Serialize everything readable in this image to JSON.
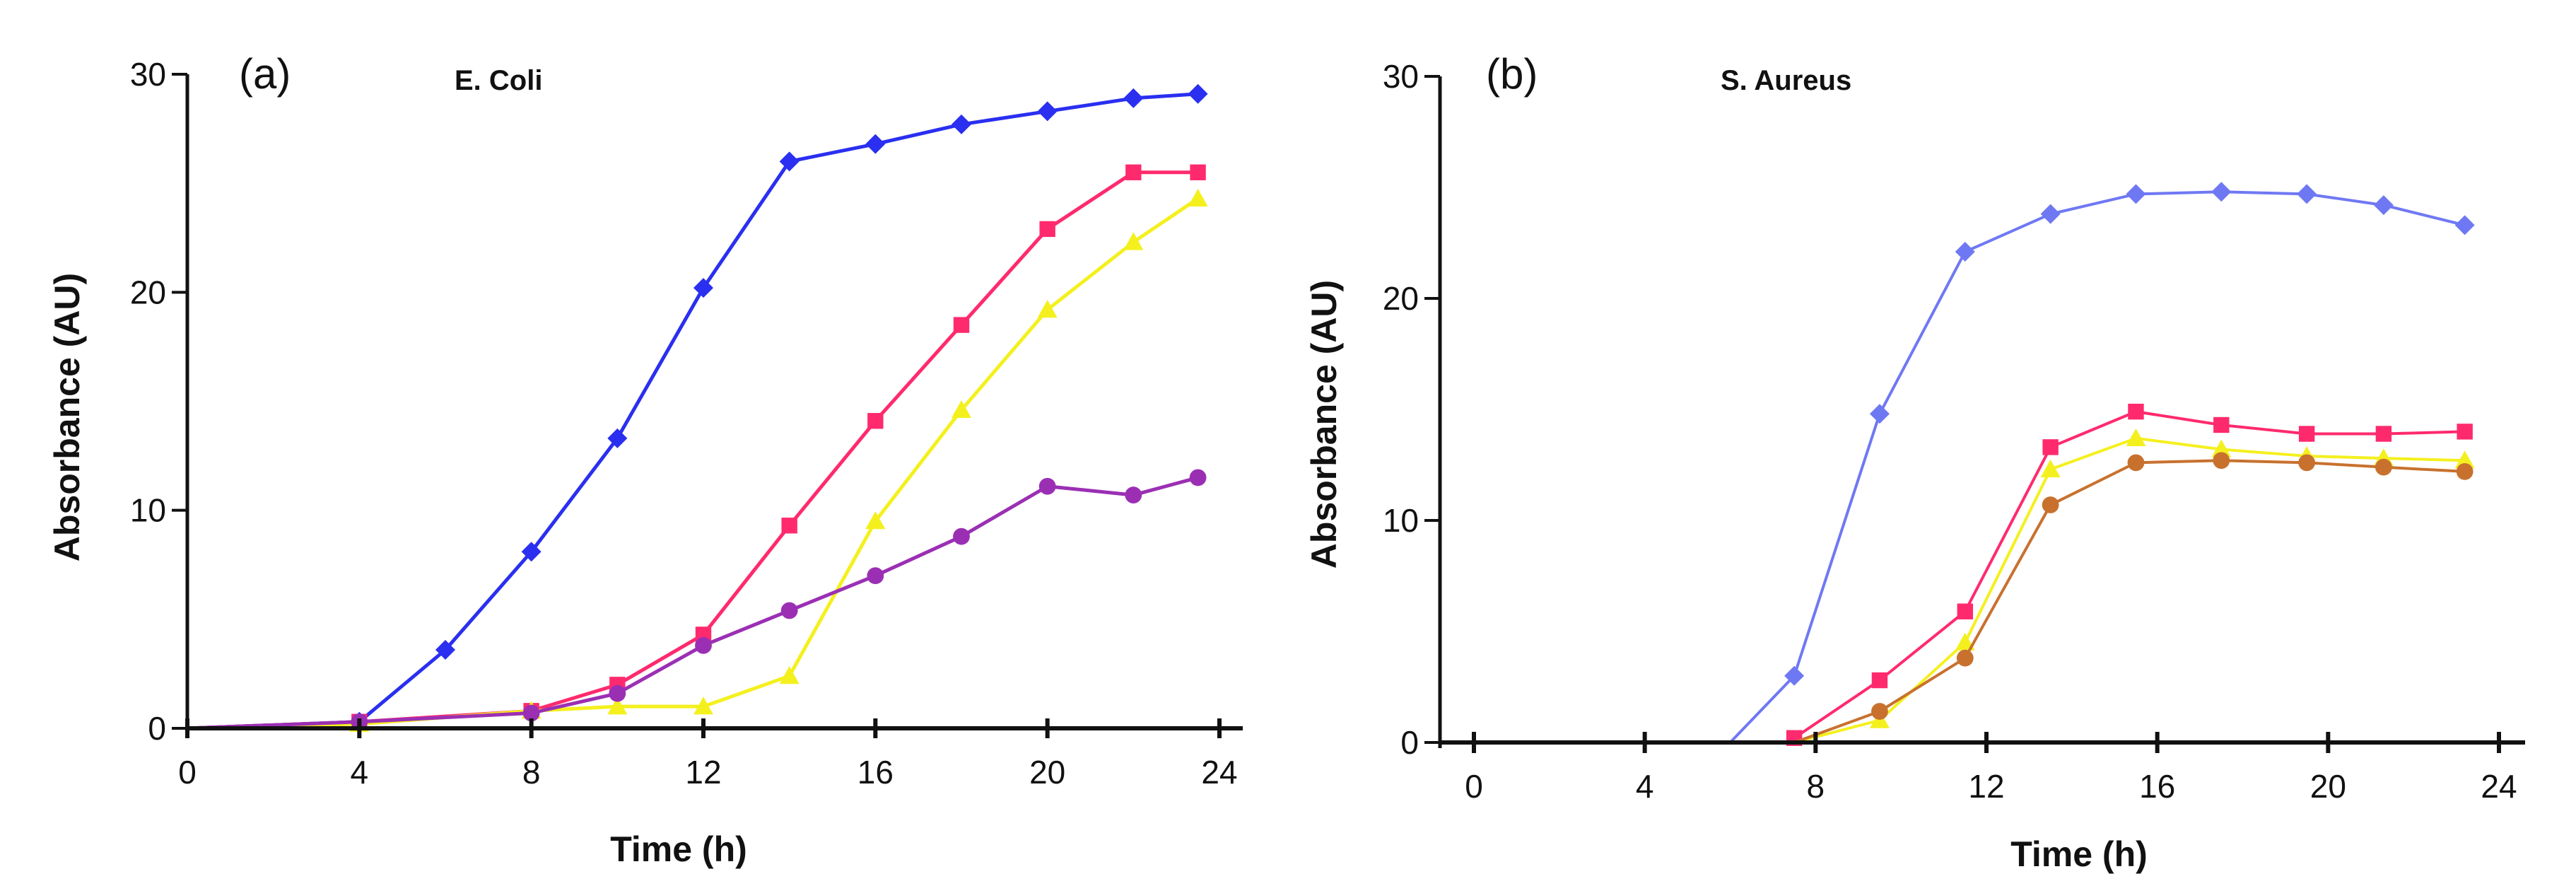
{
  "chart_data": [
    {
      "type": "line",
      "panel_label": "(a)",
      "title": "E. Coli",
      "xlabel": "Time (h)",
      "ylabel": "Absorbance (AU)",
      "xlim": [
        0,
        24
      ],
      "ylim": [
        0,
        30
      ],
      "x_ticks": [
        0,
        4,
        8,
        12,
        16,
        20,
        24
      ],
      "y_ticks": [
        0,
        10,
        20,
        30
      ],
      "series": [
        {
          "name": "blue",
          "color": "#2a2ff0",
          "marker": "diamond",
          "x": [
            0,
            4,
            6,
            8,
            10,
            12,
            14,
            16,
            18,
            20,
            22,
            23.5
          ],
          "y": [
            0,
            0.3,
            3.6,
            8.1,
            13.3,
            20.2,
            26,
            26.8,
            27.7,
            28.3,
            28.9,
            29.1
          ]
        },
        {
          "name": "pink",
          "color": "#ff2a6e",
          "marker": "square",
          "x": [
            0,
            4,
            8,
            10,
            12,
            14,
            16,
            18,
            20,
            22,
            23.5
          ],
          "y": [
            0,
            0.3,
            0.8,
            2,
            4.3,
            9.3,
            14.1,
            18.5,
            22.9,
            25.5,
            25.5
          ]
        },
        {
          "name": "yellow",
          "color": "#f4f01e",
          "marker": "triangle",
          "x": [
            0,
            4,
            8,
            10,
            12,
            14,
            16,
            18,
            20,
            22,
            23.5
          ],
          "y": [
            0,
            0.2,
            0.8,
            1,
            1,
            2.4,
            9.5,
            14.6,
            19.2,
            22.3,
            24.3
          ]
        },
        {
          "name": "purple",
          "color": "#9b2fb4",
          "marker": "circle",
          "x": [
            0,
            4,
            8,
            10,
            12,
            14,
            16,
            18,
            20,
            22,
            23.5
          ],
          "y": [
            0,
            0.3,
            0.7,
            1.6,
            3.8,
            5.4,
            7,
            8.8,
            11.1,
            10.7,
            11.5
          ]
        }
      ]
    },
    {
      "type": "line",
      "panel_label": "(b)",
      "title": "S. Aureus",
      "xlabel": "Time (h)",
      "ylabel": "Absorbance (AU)",
      "xlim": [
        0,
        24
      ],
      "ylim": [
        0,
        30
      ],
      "x_ticks": [
        0,
        4,
        8,
        12,
        16,
        20,
        24
      ],
      "y_ticks": [
        0,
        10,
        20,
        30
      ],
      "series": [
        {
          "name": "blue",
          "color": "#6f78f3",
          "marker": "diamond",
          "x": [
            6,
            7.5,
            9.5,
            11.5,
            13.5,
            15.5,
            17.5,
            19.5,
            21.3,
            23.2
          ],
          "y": [
            0,
            3,
            14.8,
            22.1,
            23.8,
            24.7,
            24.8,
            24.7,
            24.2,
            23.3
          ]
        },
        {
          "name": "pink",
          "color": "#ff2a6e",
          "marker": "square",
          "x": [
            7.5,
            9.5,
            11.5,
            13.5,
            15.5,
            17.5,
            19.5,
            21.3,
            23.2
          ],
          "y": [
            0.2,
            2.8,
            5.9,
            13.3,
            14.9,
            14.3,
            13.9,
            13.9,
            14
          ]
        },
        {
          "name": "yellow",
          "color": "#f4f01e",
          "marker": "triangle",
          "x": [
            7.5,
            9.5,
            11.5,
            13.5,
            15.5,
            17.5,
            19.5,
            21.3,
            23.2
          ],
          "y": [
            0,
            1,
            4.5,
            12.3,
            13.7,
            13.2,
            12.9,
            12.8,
            12.7
          ]
        },
        {
          "name": "brown",
          "color": "#c8712e",
          "marker": "circle",
          "x": [
            7.5,
            9.5,
            11.5,
            13.5,
            15.5,
            17.5,
            19.5,
            21.3,
            23.2
          ],
          "y": [
            0,
            1.4,
            3.8,
            10.7,
            12.6,
            12.7,
            12.6,
            12.4,
            12.2
          ]
        }
      ]
    }
  ]
}
